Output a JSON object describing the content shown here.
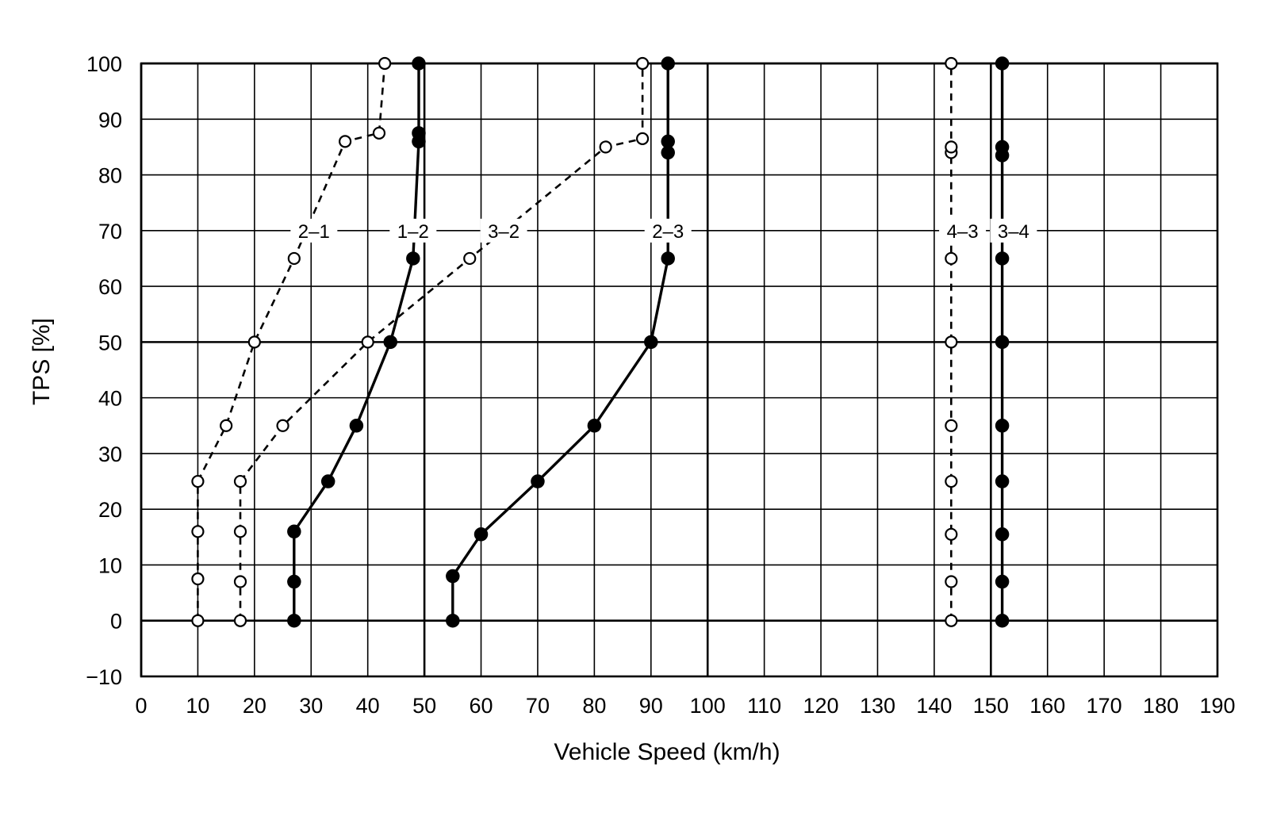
{
  "chart_data": {
    "type": "line",
    "xlabel": "Vehicle Speed (km/h)",
    "ylabel": "TPS [%]",
    "xlim": [
      0,
      190
    ],
    "ylim": [
      -10,
      100
    ],
    "xticks": [
      0,
      10,
      20,
      30,
      40,
      50,
      60,
      70,
      80,
      90,
      100,
      110,
      120,
      130,
      140,
      150,
      160,
      170,
      180,
      190
    ],
    "yticks": [
      100,
      90,
      80,
      70,
      60,
      50,
      40,
      30,
      20,
      10,
      0,
      -10
    ],
    "ytick_labels": [
      "100",
      "90",
      "80",
      "70",
      "60",
      "50",
      "40",
      "30",
      "20",
      "10",
      "0",
      "−10"
    ],
    "grid": true,
    "series": [
      {
        "name": "2–1",
        "line_style": "dashed",
        "marker": "open",
        "x": [
          10,
          10,
          10,
          10,
          15,
          20,
          27,
          36,
          42,
          43
        ],
        "y": [
          0,
          7.5,
          16,
          25,
          35,
          50,
          65,
          86,
          87.5,
          100
        ]
      },
      {
        "name": "3–2",
        "line_style": "dashed",
        "marker": "open",
        "x": [
          17.5,
          17.5,
          17.5,
          17.5,
          25,
          40,
          58,
          82,
          88.5,
          88.5
        ],
        "y": [
          0,
          7,
          16,
          25,
          35,
          50,
          65,
          85,
          86.5,
          100
        ]
      },
      {
        "name": "1–2",
        "line_style": "solid",
        "marker": "filled",
        "x": [
          27,
          27,
          27,
          33,
          38,
          44,
          48,
          49,
          49,
          49
        ],
        "y": [
          0,
          7,
          16,
          25,
          35,
          50,
          65,
          86,
          87.5,
          100
        ]
      },
      {
        "name": "2–3",
        "line_style": "solid",
        "marker": "filled",
        "x": [
          55,
          55,
          60,
          70,
          80,
          90,
          93,
          93,
          93,
          93
        ],
        "y": [
          0,
          8,
          15.5,
          25,
          35,
          50,
          65,
          84,
          86,
          100
        ]
      },
      {
        "name": "4–3",
        "line_style": "dashed",
        "marker": "open",
        "x": [
          143,
          143,
          143,
          143,
          143,
          143,
          143,
          143,
          143,
          143
        ],
        "y": [
          0,
          7,
          15.5,
          25,
          35,
          50,
          65,
          84,
          85,
          100
        ]
      },
      {
        "name": "3–4",
        "line_style": "solid",
        "marker": "filled",
        "x": [
          152,
          152,
          152,
          152,
          152,
          152,
          152,
          152,
          152,
          152
        ],
        "y": [
          0,
          7,
          15.5,
          25,
          35,
          50,
          65,
          83.5,
          85,
          100
        ]
      }
    ],
    "series_labels": [
      {
        "text": "2–1",
        "x": 30.5,
        "y": 70
      },
      {
        "text": "1–2",
        "x": 48,
        "y": 70
      },
      {
        "text": "3–2",
        "x": 64,
        "y": 70
      },
      {
        "text": "2–3",
        "x": 93,
        "y": 70
      },
      {
        "text": "4–3",
        "x": 145,
        "y": 70
      },
      {
        "text": "3–4",
        "x": 154,
        "y": 70
      }
    ],
    "colors": {
      "line": "#000000",
      "grid": "#000000",
      "open_marker_fill": "#ffffff",
      "background": "#ffffff"
    }
  }
}
